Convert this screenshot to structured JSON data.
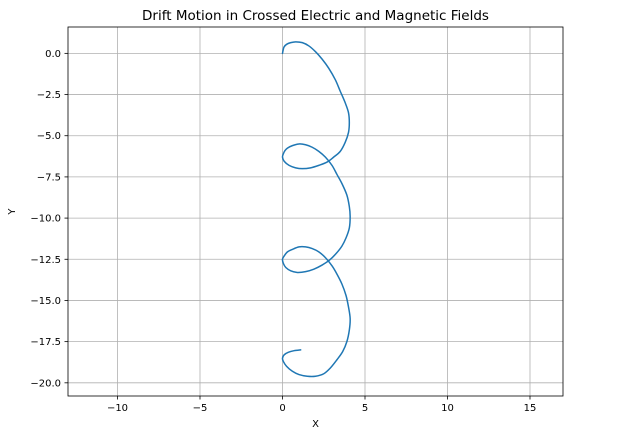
{
  "chart_data": {
    "type": "line",
    "title": "Drift Motion in Crossed Electric and Magnetic Fields",
    "xlabel": "X",
    "ylabel": "Y",
    "xlim": [
      -13,
      17
    ],
    "ylim": [
      -20.8,
      1.6
    ],
    "xticks": [
      -10,
      -5,
      0,
      5,
      10,
      15
    ],
    "xtick_labels": [
      "−10",
      "−5",
      "0",
      "5",
      "10",
      "15"
    ],
    "yticks": [
      0.0,
      -2.5,
      -5.0,
      -7.5,
      -10.0,
      -12.5,
      -15.0,
      -17.5,
      -20.0
    ],
    "ytick_labels": [
      "0.0",
      "−2.5",
      "−5.0",
      "−7.5",
      "−10.0",
      "−12.5",
      "−15.0",
      "−17.5",
      "−20.0"
    ],
    "grid": true,
    "color": "#1f77b4",
    "series": [
      {
        "x": [
          0.0,
          0.05,
          0.1,
          0.25,
          0.5,
          0.8,
          1.2,
          1.6,
          2.0,
          2.4,
          2.8,
          3.2,
          3.5,
          3.8,
          4.0,
          4.05,
          4.0,
          3.8,
          3.5,
          3.1,
          2.7,
          2.2,
          1.7,
          1.2,
          0.8,
          0.4,
          0.1,
          0.0,
          0.05,
          0.15,
          0.3,
          0.6,
          1.0,
          1.4,
          1.8,
          2.2,
          2.6,
          3.0,
          3.3,
          3.6,
          3.9,
          4.05,
          4.1,
          4.05,
          3.85,
          3.6,
          3.25,
          2.85,
          2.4,
          1.9,
          1.4,
          0.9,
          0.5,
          0.2,
          0.05,
          0.0,
          0.1,
          0.3,
          0.6,
          1.0,
          1.4,
          1.8,
          2.2,
          2.6,
          3.0,
          3.3,
          3.6,
          3.85,
          4.0,
          4.1,
          4.05,
          3.9,
          3.65,
          3.3,
          2.9,
          2.5,
          2.0,
          1.5,
          1.0,
          0.6,
          0.25,
          0.05,
          0.0,
          0.1,
          0.35,
          0.7,
          1.1
        ],
        "y": [
          0.0,
          0.25,
          0.4,
          0.55,
          0.65,
          0.7,
          0.65,
          0.45,
          0.1,
          -0.35,
          -0.9,
          -1.6,
          -2.3,
          -3.0,
          -3.6,
          -4.2,
          -4.8,
          -5.4,
          -5.95,
          -6.3,
          -6.6,
          -6.8,
          -6.95,
          -7.0,
          -6.95,
          -6.8,
          -6.55,
          -6.3,
          -6.1,
          -5.9,
          -5.75,
          -5.6,
          -5.5,
          -5.55,
          -5.7,
          -5.95,
          -6.3,
          -6.8,
          -7.35,
          -7.9,
          -8.6,
          -9.3,
          -9.9,
          -10.6,
          -11.2,
          -11.7,
          -12.15,
          -12.55,
          -12.85,
          -13.1,
          -13.25,
          -13.3,
          -13.2,
          -13.0,
          -12.75,
          -12.5,
          -12.3,
          -12.05,
          -11.9,
          -11.75,
          -11.75,
          -11.85,
          -12.05,
          -12.4,
          -12.9,
          -13.4,
          -14.0,
          -14.7,
          -15.4,
          -16.1,
          -16.8,
          -17.5,
          -18.1,
          -18.6,
          -19.1,
          -19.45,
          -19.6,
          -19.6,
          -19.5,
          -19.3,
          -19.0,
          -18.7,
          -18.5,
          -18.3,
          -18.15,
          -18.05,
          -18.0
        ]
      }
    ]
  }
}
